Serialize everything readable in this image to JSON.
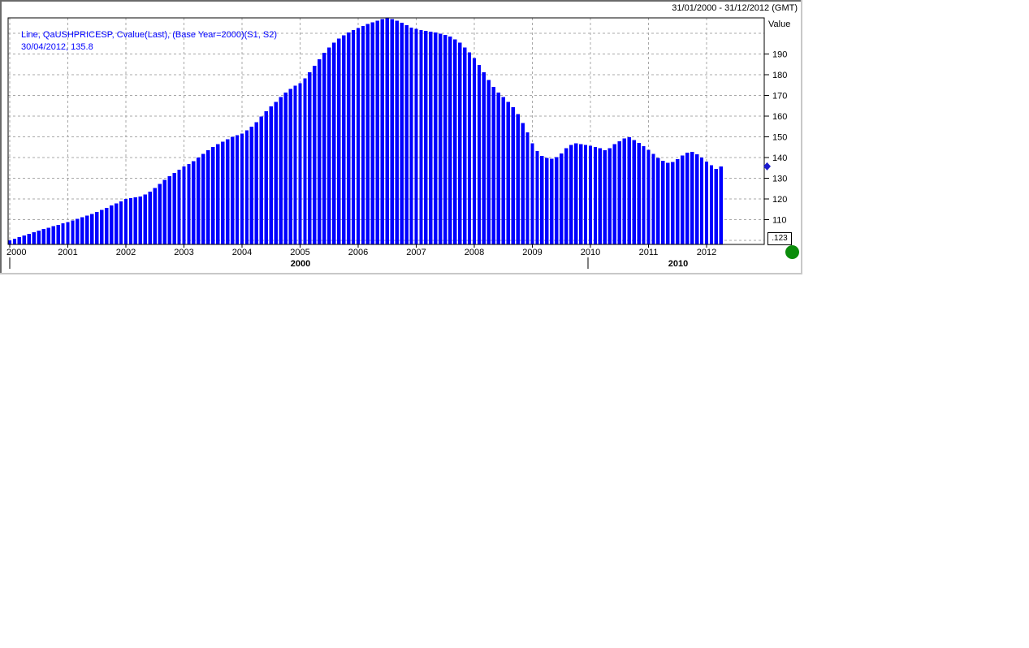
{
  "window": {
    "date_range": "31/01/2000 - 31/12/2012 (GMT)"
  },
  "legend": {
    "line1": "Line, QaUSHPRICESP, Cvalue(Last), (Base Year=2000)(S1, S2)",
    "line2": "30/04/2012, 135.8"
  },
  "y_axis": {
    "title": "Value",
    "ticks": [
      "190",
      "180",
      "170",
      "160",
      "150",
      "140",
      "130",
      "120",
      "110"
    ],
    "decimals_button": ".123"
  },
  "x_axis": {
    "year_labels": [
      "2000",
      "2001",
      "2002",
      "2003",
      "2004",
      "2005",
      "2006",
      "2007",
      "2008",
      "2009",
      "2010",
      "2011",
      "2012"
    ],
    "decade_labels": [
      "2000",
      "2010"
    ]
  },
  "colors": {
    "bar": "#0000ff",
    "legend_text": "#0000ff",
    "grid": "#a8a8a8",
    "plot_border": "#000000",
    "marker_blue": "#1a1acd",
    "status_green": "#0b8c0b",
    "frame_dark": "#6a6a6a",
    "frame_light": "#c8c8c8"
  },
  "chart_data": {
    "type": "bar",
    "series_name": "QaUSHPRICESP Cvalue(Last) (Base Year=2000)",
    "frequency": "monthly",
    "x_start": "2000-01",
    "x_end": "2012-04",
    "xlim": [
      "31/01/2000",
      "31/12/2012"
    ],
    "ylim": [
      98.1,
      207.5
    ],
    "y_ticks": [
      190,
      180,
      170,
      160,
      150,
      140,
      130,
      120,
      110
    ],
    "grid_values": [
      100,
      110,
      120,
      130,
      140,
      150,
      160,
      170,
      180,
      190,
      200
    ],
    "grid": "dashed",
    "legend_position": "top-left",
    "last_point": {
      "date": "30/04/2012",
      "value": 135.8
    },
    "values": [
      100.0,
      100.8,
      101.6,
      102.4,
      103.2,
      104.0,
      104.8,
      105.5,
      106.2,
      106.9,
      107.6,
      108.3,
      109.0,
      109.7,
      110.4,
      111.2,
      112.0,
      112.9,
      113.8,
      114.8,
      115.8,
      116.9,
      118.0,
      119.0,
      120.0,
      120.5,
      120.9,
      121.3,
      122.2,
      123.6,
      125.4,
      127.3,
      129.2,
      131.0,
      132.6,
      134.2,
      135.7,
      137.0,
      138.4,
      140.0,
      141.8,
      143.6,
      145.2,
      146.6,
      147.8,
      149.0,
      150.0,
      150.8,
      151.6,
      153.2,
      155.0,
      157.2,
      159.8,
      162.4,
      164.8,
      167.0,
      169.2,
      171.4,
      173.2,
      174.7,
      176.0,
      178.4,
      181.2,
      184.4,
      187.6,
      190.6,
      193.2,
      195.5,
      197.5,
      199.1,
      200.5,
      201.7,
      202.7,
      203.6,
      204.5,
      205.4,
      206.2,
      206.9,
      207.4,
      207.0,
      206.2,
      205.1,
      204.0,
      202.8,
      202.2,
      201.7,
      201.3,
      200.9,
      200.4,
      199.9,
      199.3,
      198.5,
      197.2,
      195.6,
      193.3,
      190.8,
      188.2,
      184.8,
      181.2,
      177.5,
      174.2,
      171.5,
      169.3,
      166.9,
      164.3,
      161.0,
      156.8,
      152.2,
      147.0,
      143.2,
      140.8,
      139.8,
      139.4,
      140.2,
      142.1,
      144.6,
      146.1,
      147.0,
      146.5,
      146.1,
      145.7,
      145.1,
      144.5,
      143.7,
      144.6,
      146.5,
      148.0,
      149.2,
      149.8,
      148.5,
      147.1,
      145.6,
      143.9,
      141.9,
      139.9,
      138.6,
      137.6,
      137.9,
      139.2,
      141.1,
      142.4,
      142.9,
      141.7,
      140.1,
      138.1,
      136.4,
      134.5,
      135.8
    ]
  }
}
